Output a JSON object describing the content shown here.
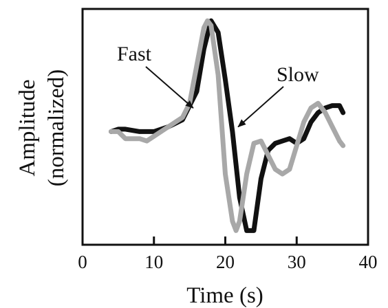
{
  "chart_data": {
    "type": "line",
    "xlabel": "Time (s)",
    "ylabel_line1": "Amplitude",
    "ylabel_line2": "(normalized)",
    "xlim": [
      0,
      40
    ],
    "ylim": [
      0,
      1
    ],
    "xticks": [
      0,
      10,
      20,
      30,
      40
    ],
    "grid": false,
    "legend": "none",
    "series": [
      {
        "name": "Slow",
        "color": "#111111",
        "x": [
          4,
          5,
          6,
          8,
          10,
          12,
          14,
          16,
          17,
          18,
          19,
          20,
          21,
          22,
          23,
          24,
          25,
          26,
          27,
          28,
          29,
          30,
          31,
          32,
          33,
          34,
          35,
          36,
          36.5
        ],
        "y": [
          0.48,
          0.49,
          0.49,
          0.48,
          0.48,
          0.5,
          0.53,
          0.65,
          0.83,
          0.95,
          0.9,
          0.7,
          0.48,
          0.2,
          0.06,
          0.06,
          0.28,
          0.4,
          0.43,
          0.44,
          0.45,
          0.43,
          0.45,
          0.52,
          0.56,
          0.58,
          0.59,
          0.59,
          0.56
        ]
      },
      {
        "name": "Fast",
        "color": "#a8a8a8",
        "x": [
          4,
          5,
          6,
          7,
          8,
          9,
          10,
          12,
          14,
          15,
          16,
          17,
          17.5,
          18,
          19,
          20,
          21,
          21.5,
          22,
          23,
          24,
          25,
          26,
          27,
          28,
          29,
          30,
          31,
          32,
          33,
          34,
          35,
          36,
          36.5
        ],
        "y": [
          0.48,
          0.48,
          0.45,
          0.45,
          0.45,
          0.44,
          0.46,
          0.5,
          0.54,
          0.6,
          0.76,
          0.92,
          0.95,
          0.93,
          0.72,
          0.3,
          0.1,
          0.06,
          0.1,
          0.3,
          0.43,
          0.44,
          0.38,
          0.32,
          0.3,
          0.32,
          0.42,
          0.52,
          0.58,
          0.6,
          0.56,
          0.5,
          0.44,
          0.42
        ]
      }
    ],
    "annotations": [
      {
        "text": "Fast",
        "target_series": "Fast",
        "target": [
          15.5,
          0.58
        ]
      },
      {
        "text": "Slow",
        "target_series": "Slow",
        "target": [
          21.8,
          0.5
        ]
      }
    ]
  }
}
